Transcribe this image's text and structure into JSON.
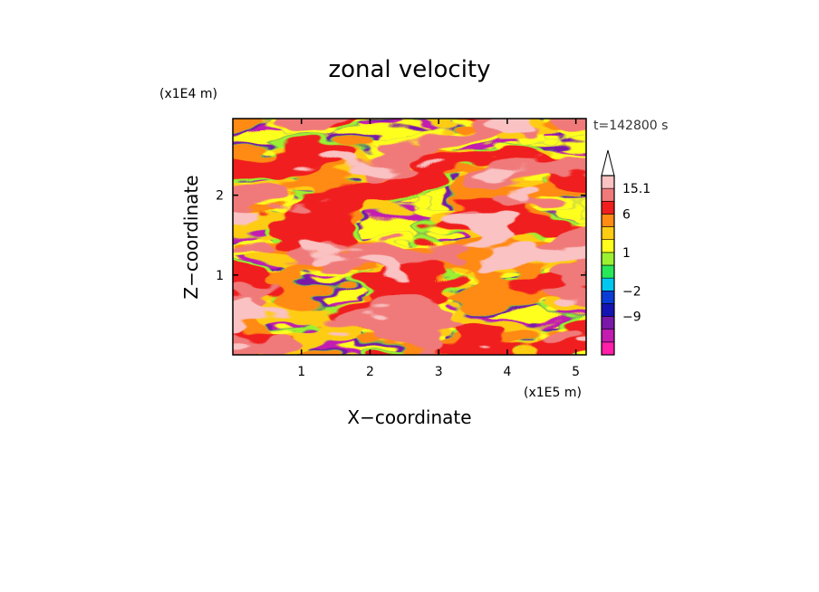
{
  "chart_data": {
    "type": "heatmap",
    "title": "zonal velocity",
    "xlabel": "X−coordinate",
    "ylabel": "Z−coordinate",
    "x_unit": "(x1E5 m)",
    "y_unit": "(x1E4 m)",
    "time_label": "t=142800 s",
    "xlim": [
      0,
      5.15
    ],
    "ylim": [
      0,
      2.96
    ],
    "x_ticks": [
      1,
      2,
      3,
      4,
      5
    ],
    "y_ticks": [
      1,
      2
    ],
    "colorbar": {
      "levels": [
        -16,
        -13,
        -9,
        -6,
        -2,
        -1,
        0,
        1,
        2,
        3,
        6,
        9,
        12,
        15.1
      ],
      "labels": [
        {
          "level": 15.1,
          "text": "15.1"
        },
        {
          "level": 6,
          "text": "6"
        },
        {
          "level": 1,
          "text": "1"
        },
        {
          "level": -2,
          "text": "−2"
        },
        {
          "level": -9,
          "text": "−9"
        }
      ],
      "colors": [
        "#ff1fa8",
        "#c21cb0",
        "#7a18a8",
        "#1414b4",
        "#0a3cd6",
        "#00c8f0",
        "#28e85a",
        "#9cf032",
        "#ffff1e",
        "#ffcc14",
        "#ff8a14",
        "#f01e1e",
        "#f07a7a",
        "#fac2c2"
      ],
      "extend_max": true
    }
  }
}
